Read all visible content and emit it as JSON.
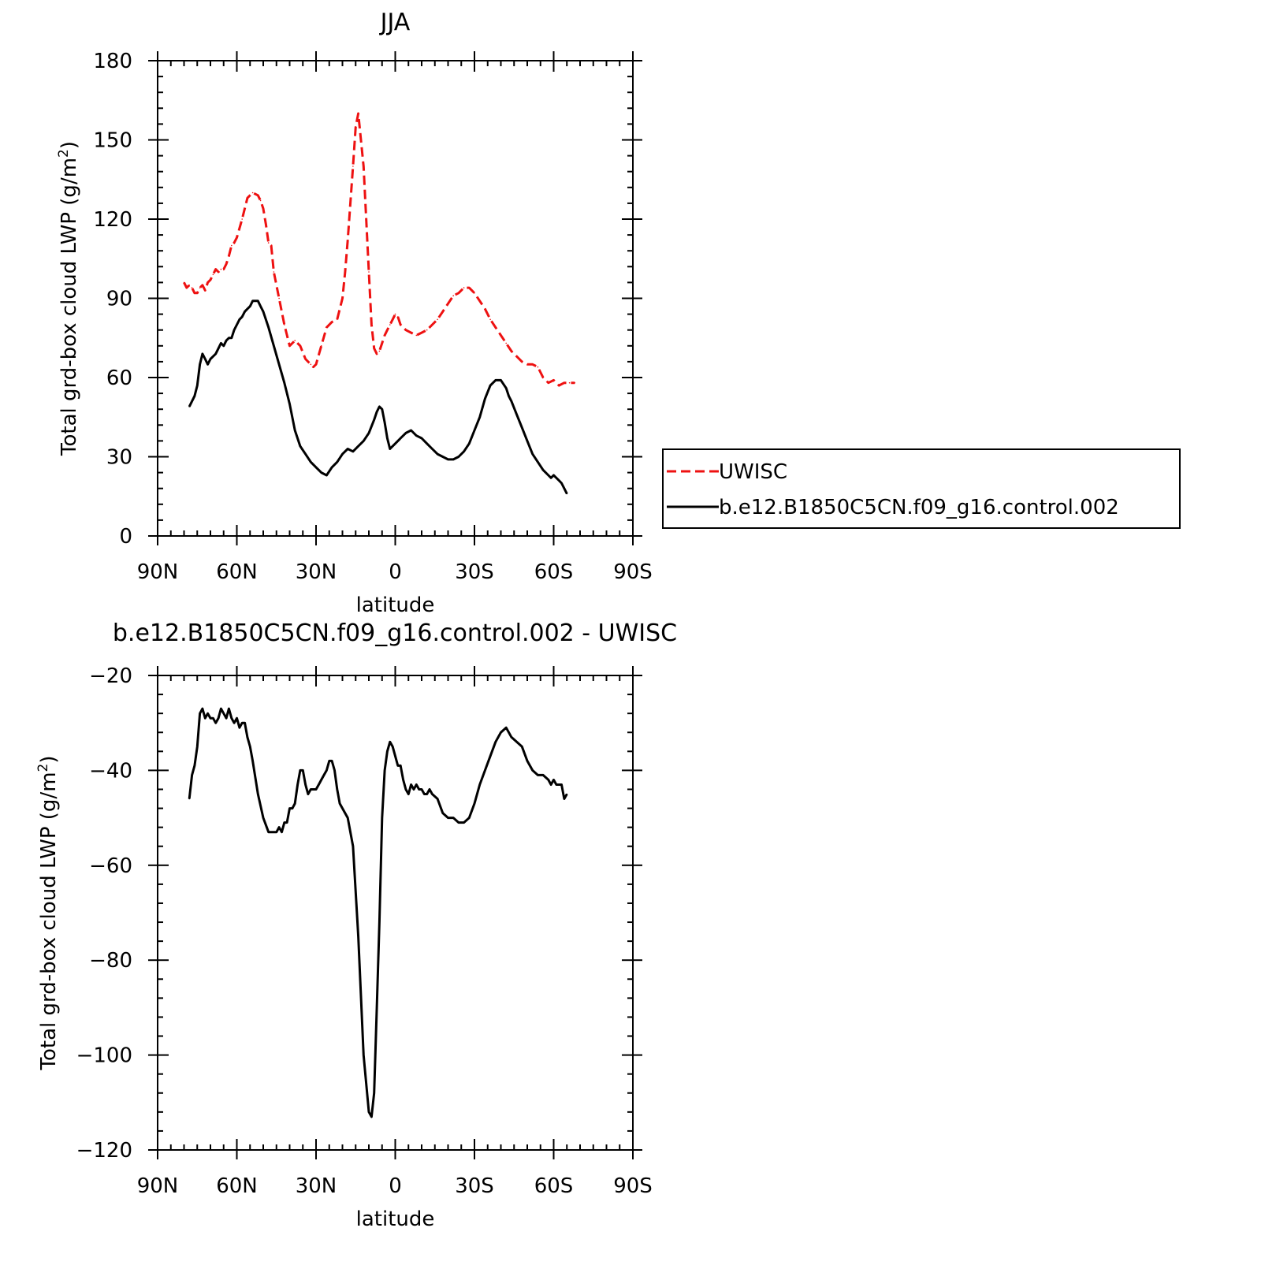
{
  "chart_data": [
    {
      "type": "line",
      "title": "JJA",
      "xlabel": "latitude",
      "ylabel_main": "Total grd-box cloud LWP (g/m",
      "ylabel_sup": "2",
      "ylabel_close": ")",
      "xlim": [
        90,
        -90
      ],
      "ylim": [
        0,
        180
      ],
      "x_ticks": [
        {
          "v": 90,
          "label": "90N"
        },
        {
          "v": 60,
          "label": "60N"
        },
        {
          "v": 30,
          "label": "30N"
        },
        {
          "v": 0,
          "label": "0"
        },
        {
          "v": -30,
          "label": "30S"
        },
        {
          "v": -60,
          "label": "60S"
        },
        {
          "v": -90,
          "label": "90S"
        }
      ],
      "y_ticks": [
        {
          "v": 0,
          "label": "0"
        },
        {
          "v": 30,
          "label": "30"
        },
        {
          "v": 60,
          "label": "60"
        },
        {
          "v": 90,
          "label": "90"
        },
        {
          "v": 120,
          "label": "120"
        },
        {
          "v": 150,
          "label": "150"
        },
        {
          "v": 180,
          "label": "180"
        }
      ],
      "legend": {
        "placement": "right"
      },
      "series": [
        {
          "name": "UWISC",
          "color": "#ee1111",
          "style": "dashed",
          "x": [
            80,
            79,
            78,
            77,
            76,
            75,
            74,
            73,
            72,
            71,
            70,
            69,
            68,
            67,
            66,
            65,
            64,
            63,
            62,
            61,
            60,
            58,
            56,
            54,
            52,
            51,
            50,
            49,
            48,
            47,
            46,
            44,
            42,
            40,
            38,
            36,
            34,
            32,
            31,
            30,
            28,
            26,
            24,
            22,
            20,
            19,
            18,
            16,
            15,
            14,
            12,
            10,
            9,
            8,
            7,
            6,
            5,
            4,
            3,
            2,
            1,
            0,
            -1,
            -2,
            -4,
            -6,
            -8,
            -10,
            -12,
            -14,
            -16,
            -18,
            -20,
            -22,
            -24,
            -26,
            -28,
            -30,
            -32,
            -34,
            -36,
            -38,
            -40,
            -42,
            -44,
            -46,
            -48,
            -50,
            -52,
            -54,
            -56,
            -58,
            -60,
            -62,
            -64,
            -66,
            -67,
            -68
          ],
          "y": [
            96,
            94,
            95,
            94,
            92,
            92,
            94,
            95,
            93,
            96,
            97,
            99,
            101,
            100,
            101,
            101,
            103,
            106,
            110,
            111,
            113,
            120,
            128,
            130,
            129,
            127,
            124,
            118,
            111,
            110,
            100,
            90,
            80,
            72,
            74,
            72,
            67,
            65,
            64,
            65,
            72,
            79,
            81,
            82,
            90,
            100,
            112,
            140,
            155,
            160,
            140,
            100,
            80,
            71,
            69,
            70,
            73,
            76,
            78,
            80,
            82,
            84,
            83,
            80,
            78,
            77,
            76,
            77,
            78,
            80,
            82,
            85,
            88,
            91,
            92,
            94,
            94,
            92,
            89,
            86,
            82,
            79,
            76,
            73,
            70,
            68,
            66,
            65,
            65,
            64,
            60,
            58,
            59,
            57,
            58,
            58,
            58,
            58
          ]
        },
        {
          "name": "b.e12.B1850C5CN.f09_g16.control.002",
          "color": "#000000",
          "style": "solid",
          "x": [
            78,
            77,
            76,
            75,
            74,
            73,
            72,
            71,
            70,
            69,
            68,
            67,
            66,
            65,
            64,
            63,
            62,
            61,
            60,
            59,
            58,
            57,
            56,
            55,
            54,
            53,
            52,
            51,
            50,
            48,
            46,
            44,
            42,
            40,
            38,
            36,
            34,
            32,
            30,
            28,
            26,
            24,
            22,
            20,
            18,
            16,
            14,
            12,
            10,
            8,
            7,
            6,
            5,
            4,
            3,
            2,
            1,
            0,
            -2,
            -4,
            -6,
            -8,
            -10,
            -12,
            -14,
            -16,
            -18,
            -20,
            -22,
            -24,
            -26,
            -28,
            -30,
            -32,
            -34,
            -36,
            -38,
            -40,
            -42,
            -43,
            -44,
            -46,
            -48,
            -50,
            -52,
            -54,
            -56,
            -58,
            -59,
            -60,
            -61,
            -62,
            -63,
            -64,
            -65
          ],
          "y": [
            49,
            51,
            53,
            57,
            65,
            69,
            67,
            65,
            67,
            68,
            69,
            71,
            73,
            72,
            74,
            75,
            75,
            78,
            80,
            82,
            83,
            85,
            86,
            87,
            89,
            89,
            89,
            87,
            85,
            79,
            72,
            65,
            58,
            50,
            40,
            34,
            31,
            28,
            26,
            24,
            23,
            26,
            28,
            31,
            33,
            32,
            34,
            36,
            39,
            44,
            47,
            49,
            48,
            43,
            37,
            33,
            34,
            35,
            37,
            39,
            40,
            38,
            37,
            35,
            33,
            31,
            30,
            29,
            29,
            30,
            32,
            35,
            40,
            45,
            52,
            57,
            59,
            59,
            56,
            53,
            51,
            46,
            41,
            36,
            31,
            28,
            25,
            23,
            22,
            23,
            22,
            21,
            20,
            18,
            16
          ]
        }
      ]
    },
    {
      "type": "line",
      "title": "b.e12.B1850C5CN.f09_g16.control.002 - UWISC",
      "xlabel": "latitude",
      "ylabel_main": "Total grd-box cloud LWP (g/m",
      "ylabel_sup": "2",
      "ylabel_close": ")",
      "xlim": [
        90,
        -90
      ],
      "ylim": [
        -120,
        -20
      ],
      "x_ticks": [
        {
          "v": 90,
          "label": "90N"
        },
        {
          "v": 60,
          "label": "60N"
        },
        {
          "v": 30,
          "label": "30N"
        },
        {
          "v": 0,
          "label": "0"
        },
        {
          "v": -30,
          "label": "30S"
        },
        {
          "v": -60,
          "label": "60S"
        },
        {
          "v": -90,
          "label": "90S"
        }
      ],
      "y_ticks": [
        {
          "v": -120,
          "label": "-120"
        },
        {
          "v": -100,
          "label": "-100"
        },
        {
          "v": -80,
          "label": "-80"
        },
        {
          "v": -60,
          "label": "-60"
        },
        {
          "v": -40,
          "label": "-40"
        },
        {
          "v": -20,
          "label": "-20"
        }
      ],
      "series": [
        {
          "color": "#000000",
          "style": "solid",
          "x": [
            78,
            77,
            76,
            75,
            74,
            73,
            72,
            71,
            70,
            69,
            68,
            67,
            66,
            65,
            64,
            63,
            62,
            61,
            60,
            59,
            58,
            57,
            56,
            55,
            54,
            52,
            50,
            48,
            46,
            45,
            44,
            43,
            42,
            41,
            40,
            39,
            38,
            37,
            36,
            35,
            34,
            33,
            32,
            31,
            30,
            29,
            28,
            27,
            26,
            25,
            24,
            23,
            22,
            21,
            20,
            18,
            16,
            14,
            12,
            10,
            9,
            8,
            7,
            6,
            5,
            4,
            3,
            2,
            1,
            0,
            -1,
            -2,
            -3,
            -4,
            -5,
            -6,
            -7,
            -8,
            -9,
            -10,
            -11,
            -12,
            -13,
            -14,
            -16,
            -18,
            -20,
            -22,
            -24,
            -26,
            -28,
            -30,
            -32,
            -34,
            -36,
            -38,
            -40,
            -42,
            -44,
            -46,
            -48,
            -50,
            -52,
            -54,
            -56,
            -58,
            -59,
            -60,
            -61,
            -62,
            -63,
            -64,
            -65
          ],
          "y": [
            -46,
            -41,
            -39,
            -35,
            -28,
            -27,
            -29,
            -28,
            -29,
            -29,
            -30,
            -29,
            -27,
            -28,
            -29,
            -27,
            -29,
            -30,
            -29,
            -31,
            -30,
            -30,
            -33,
            -35,
            -38,
            -45,
            -50,
            -53,
            -53,
            -53,
            -52,
            -53,
            -51,
            -51,
            -48,
            -48,
            -47,
            -43,
            -40,
            -40,
            -43,
            -45,
            -44,
            -44,
            -44,
            -43,
            -42,
            -41,
            -40,
            -38,
            -38,
            -40,
            -44,
            -47,
            -48,
            -50,
            -56,
            -75,
            -100,
            -112,
            -113,
            -108,
            -90,
            -72,
            -50,
            -40,
            -36,
            -34,
            -35,
            -37,
            -39,
            -39,
            -42,
            -44,
            -45,
            -43,
            -44,
            -43,
            -44,
            -44,
            -45,
            -45,
            -44,
            -45,
            -46,
            -49,
            -50,
            -50,
            -51,
            -51,
            -50,
            -47,
            -43,
            -40,
            -37,
            -34,
            -32,
            -31,
            -33,
            -34,
            -35,
            -38,
            -40,
            -41,
            -41,
            -42,
            -43,
            -42,
            -43,
            -43,
            -43,
            -46,
            -45
          ]
        }
      ]
    }
  ]
}
